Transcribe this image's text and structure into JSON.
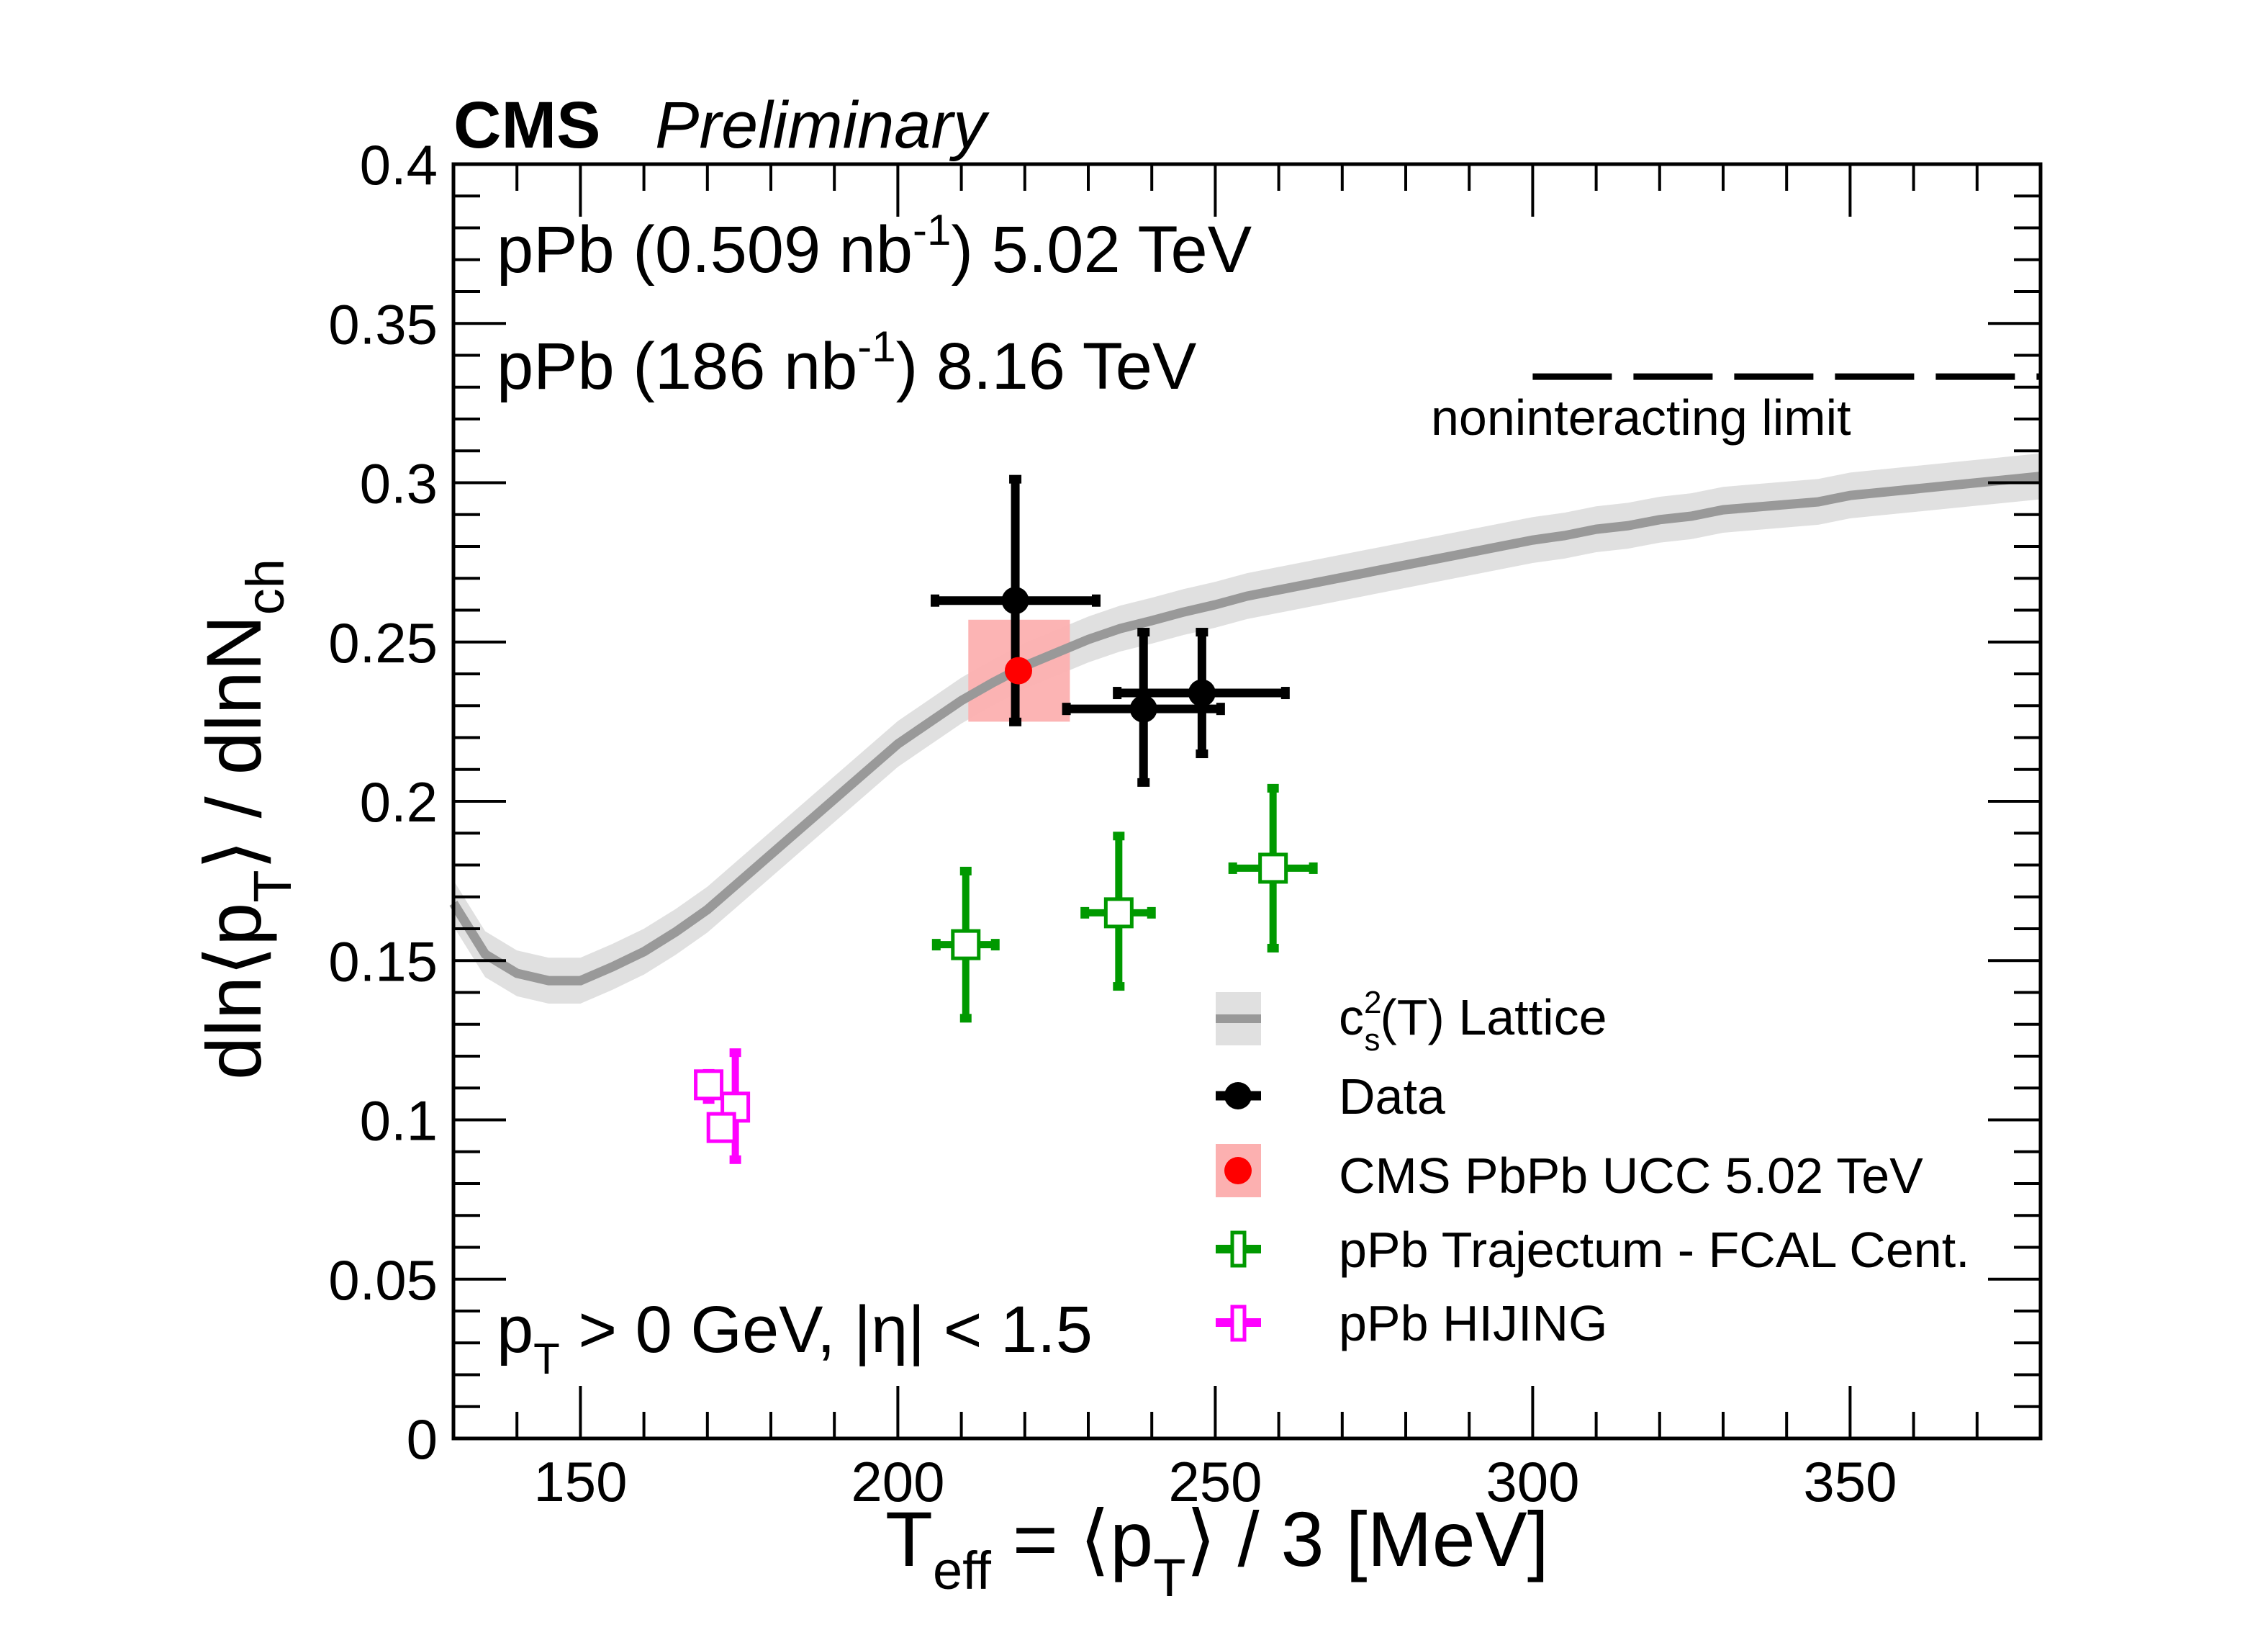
{
  "chart_data": {
    "type": "scatter",
    "header": {
      "experiment": "CMS",
      "status": "Preliminary"
    },
    "annotations": {
      "line1": {
        "prefix": "pPb (0.509 nb",
        "sup": "-1",
        "suffix": ") 5.02 TeV"
      },
      "line2": {
        "prefix": "pPb (186 nb",
        "sup": "-1",
        "suffix": ") 8.16 TeV"
      },
      "cuts": {
        "p": "p",
        "sub": "T",
        "rest": " > 0 GeV, |η| < 1.5"
      },
      "noninteracting_label": "noninteracting limit"
    },
    "xlabel": {
      "main": "T",
      "sub": "eff",
      "rest1": " = ⟨p",
      "sub2": "T",
      "rest2": "⟩ / 3 [MeV]"
    },
    "ylabel": {
      "main": "dln⟨p",
      "sub": "T",
      "rest": "⟩ / dlnN",
      "sub2": "ch"
    },
    "xlim": [
      130,
      380
    ],
    "ylim": [
      0,
      0.4
    ],
    "x_major_ticks": [
      150,
      200,
      250,
      300,
      350
    ],
    "x_tick_labels": [
      "150",
      "200",
      "250",
      "300",
      "350"
    ],
    "x_minor_step": 10,
    "y_major_ticks": [
      0,
      0.05,
      0.1,
      0.15,
      0.2,
      0.25,
      0.3,
      0.35,
      0.4
    ],
    "y_tick_labels": [
      "0",
      "0.05",
      "0.1",
      "0.15",
      "0.2",
      "0.25",
      "0.3",
      "0.35",
      "0.4"
    ],
    "y_minor_step": 0.01,
    "grid": false,
    "legend_position": "bottom-right",
    "noninteracting_limit": {
      "y": 0.3333,
      "x_from": 300,
      "x_to": 380
    },
    "series": [
      {
        "name": "c_s^2(T) Lattice",
        "legend_label": {
          "c": "c",
          "sup": "2",
          "sub": "s",
          "rest": "(T) Lattice"
        },
        "kind": "band",
        "color": "#999999",
        "band_color": "#e0e0e0",
        "x": [
          130,
          135,
          140,
          145,
          150,
          155,
          160,
          165,
          170,
          185,
          200,
          210,
          215,
          220,
          230,
          235,
          240,
          245,
          250,
          255,
          300,
          305,
          310,
          315,
          320,
          325,
          330,
          345,
          350,
          380
        ],
        "y": [
          0.168,
          0.152,
          0.146,
          0.1437,
          0.1437,
          0.148,
          0.1528,
          0.159,
          0.166,
          0.192,
          0.218,
          0.2316,
          0.2373,
          0.2425,
          0.2508,
          0.2542,
          0.2567,
          0.2594,
          0.2617,
          0.2644,
          0.282,
          0.2834,
          0.2854,
          0.2865,
          0.2884,
          0.2895,
          0.2915,
          0.294,
          0.296,
          0.302
        ],
        "band_halfwidth": 0.0072
      },
      {
        "name": "Data",
        "legend_label": "Data",
        "kind": "points",
        "marker": "filled-circle",
        "color": "#000000",
        "points": [
          {
            "x": 218.5,
            "y": 0.263,
            "xlo": 205.4,
            "xhi": 231.7,
            "ylo": 0.224,
            "yhi": 0.302
          },
          {
            "x": 238.7,
            "y": 0.229,
            "xlo": 226.1,
            "xhi": 251.3,
            "ylo": 0.205,
            "yhi": 0.254
          },
          {
            "x": 247.9,
            "y": 0.234,
            "xlo": 234.1,
            "xhi": 261.5,
            "ylo": 0.214,
            "yhi": 0.254
          }
        ]
      },
      {
        "name": "CMS PbPb UCC 5.02 TeV",
        "legend_label": "CMS PbPb UCC 5.02 TeV",
        "kind": "points-box",
        "marker": "filled-circle",
        "color": "#ff0000",
        "box_color": "#fcb0b0",
        "points": [
          {
            "x": 219.0,
            "y": 0.241,
            "xlo": 211.1,
            "xhi": 227.1,
            "ylo": 0.225,
            "yhi": 0.257
          }
        ]
      },
      {
        "name": "pPb Trajectum - FCAL Cent.",
        "legend_label": "pPb Trajectum - FCAL Cent.",
        "kind": "points",
        "marker": "open-square",
        "color": "#009900",
        "points": [
          {
            "x": 210.7,
            "y": 0.155,
            "xlo": 205.6,
            "xhi": 215.8,
            "ylo": 0.131,
            "yhi": 0.179
          },
          {
            "x": 234.8,
            "y": 0.165,
            "xlo": 229.0,
            "xhi": 240.4,
            "ylo": 0.141,
            "yhi": 0.19
          },
          {
            "x": 259.1,
            "y": 0.179,
            "xlo": 252.3,
            "xhi": 265.9,
            "ylo": 0.153,
            "yhi": 0.205
          }
        ]
      },
      {
        "name": "pPb HIJING",
        "legend_label": "pPb HIJING",
        "kind": "points",
        "marker": "open-square",
        "color": "#ff00ff",
        "points": [
          {
            "x": 170.2,
            "y": 0.111,
            "xlo": 170.2,
            "xhi": 170.2,
            "ylo": 0.1055,
            "yhi": 0.1155
          },
          {
            "x": 174.4,
            "y": 0.104,
            "xlo": 174.4,
            "xhi": 174.4,
            "ylo": 0.0866,
            "yhi": 0.122
          },
          {
            "x": 172.2,
            "y": 0.0976,
            "xlo": 172.2,
            "xhi": 172.2,
            "ylo": 0.0976,
            "yhi": 0.0976
          }
        ]
      }
    ]
  }
}
